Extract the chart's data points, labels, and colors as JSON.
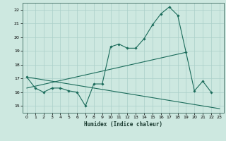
{
  "title": "",
  "xlabel": "Humidex (Indice chaleur)",
  "ylabel": "",
  "background_color": "#cde8e0",
  "grid_color": "#aacfc8",
  "line_color": "#1a6b5a",
  "xlim": [
    -0.5,
    23.5
  ],
  "ylim": [
    14.5,
    22.5
  ],
  "yticks": [
    15,
    16,
    17,
    18,
    19,
    20,
    21,
    22
  ],
  "xticks": [
    0,
    1,
    2,
    3,
    4,
    5,
    6,
    7,
    8,
    9,
    10,
    11,
    12,
    13,
    14,
    15,
    16,
    17,
    18,
    19,
    20,
    21,
    22,
    23
  ],
  "series1_x": [
    0,
    1,
    2,
    3,
    4,
    5,
    6,
    7,
    8,
    9,
    10,
    11,
    12,
    13,
    14,
    15,
    16,
    17,
    18,
    19,
    20,
    21,
    22
  ],
  "series1_y": [
    17.1,
    16.3,
    16.0,
    16.3,
    16.3,
    16.1,
    16.0,
    15.0,
    16.6,
    16.6,
    19.3,
    19.5,
    19.2,
    19.2,
    19.9,
    20.9,
    21.7,
    22.2,
    21.6,
    18.9,
    16.1,
    16.8,
    16.0
  ],
  "trend1_x": [
    0,
    23
  ],
  "trend1_y": [
    17.1,
    14.8
  ],
  "trend2_x": [
    0,
    19
  ],
  "trend2_y": [
    16.3,
    18.9
  ]
}
